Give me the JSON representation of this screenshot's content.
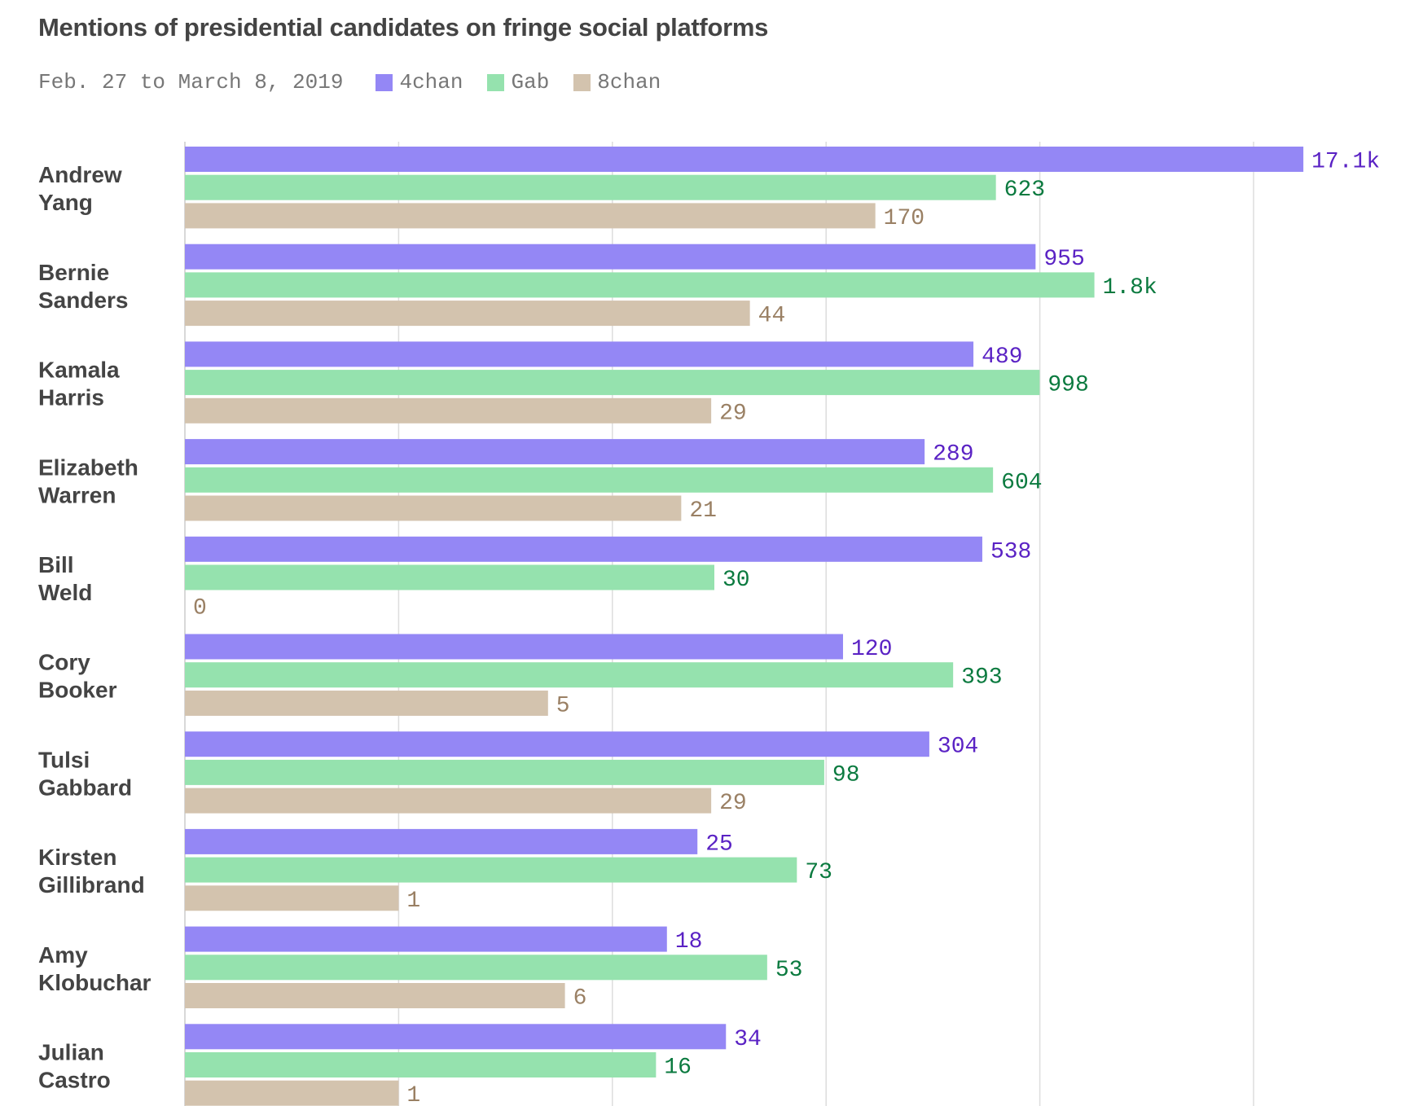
{
  "chart_data": {
    "type": "bar",
    "orientation": "horizontal",
    "title": "Mentions of presidential candidates on fringe social platforms",
    "subtitle": "Feb. 27 to March 8, 2019",
    "scale": "log",
    "categories": [
      [
        "Andrew",
        "Yang"
      ],
      [
        "Bernie",
        "Sanders"
      ],
      [
        "Kamala",
        "Harris"
      ],
      [
        "Elizabeth",
        "Warren"
      ],
      [
        "Bill",
        "Weld"
      ],
      [
        "Cory",
        "Booker"
      ],
      [
        "Tulsi",
        "Gabbard"
      ],
      [
        "Kirsten",
        "Gillibrand"
      ],
      [
        "Amy",
        "Klobuchar"
      ],
      [
        "Julian",
        "Castro"
      ]
    ],
    "series": [
      {
        "name": "4chan",
        "color": "#9487f5",
        "label_color": "#5a22c4",
        "values": [
          17100,
          955,
          489,
          289,
          538,
          120,
          304,
          25,
          18,
          34
        ],
        "labels": [
          "17.1k",
          "955",
          "489",
          "289",
          "538",
          "120",
          "304",
          "25",
          "18",
          "34"
        ]
      },
      {
        "name": "Gab",
        "color": "#95e2ae",
        "label_color": "#0b7a3f",
        "values": [
          623,
          1800,
          998,
          604,
          30,
          393,
          98,
          73,
          53,
          16
        ],
        "labels": [
          "623",
          "1.8k",
          "998",
          "604",
          "30",
          "393",
          "98",
          "73",
          "53",
          "16"
        ]
      },
      {
        "name": "8chan",
        "color": "#d3c3ae",
        "label_color": "#9a8064",
        "values": [
          170,
          44,
          29,
          21,
          0,
          5,
          29,
          1,
          6,
          1
        ],
        "labels": [
          "170",
          "44",
          "29",
          "21",
          "0",
          "5",
          "29",
          "1",
          "6",
          "1"
        ]
      }
    ],
    "legend_position": "top-left",
    "grid": true
  }
}
